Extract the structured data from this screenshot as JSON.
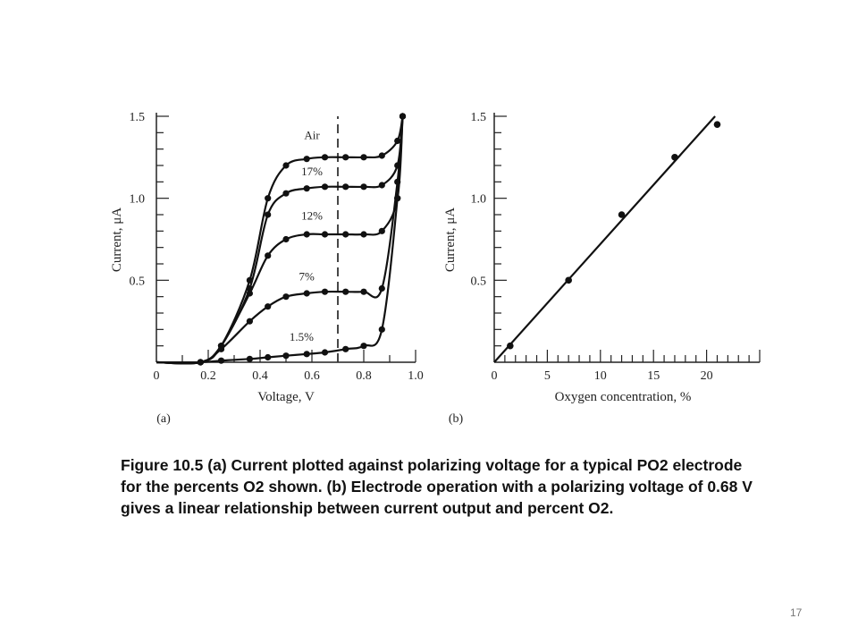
{
  "chart_data": [
    {
      "type": "line",
      "panel_label": "(a)",
      "xlabel": "Voltage, V",
      "ylabel": "Current, μA",
      "xlim": [
        0,
        1.0
      ],
      "ylim": [
        0,
        1.5
      ],
      "x_ticks": [
        "0",
        "0.2",
        "0.4",
        "0.6",
        "0.8",
        "1.0"
      ],
      "y_ticks": [
        "0.5",
        "1.0",
        "1.5"
      ],
      "reference_line_x": 0.7,
      "reference_line_style": "dashed",
      "series": [
        {
          "name": "Air",
          "x": [
            0.0,
            0.17,
            0.25,
            0.36,
            0.43,
            0.5,
            0.58,
            0.65,
            0.73,
            0.8,
            0.87,
            0.93,
            0.95
          ],
          "y": [
            0.0,
            0.0,
            0.1,
            0.5,
            1.0,
            1.2,
            1.24,
            1.25,
            1.25,
            1.25,
            1.26,
            1.35,
            1.5
          ]
        },
        {
          "name": "17%",
          "x": [
            0.0,
            0.17,
            0.25,
            0.36,
            0.43,
            0.5,
            0.58,
            0.65,
            0.73,
            0.8,
            0.87,
            0.93,
            0.95
          ],
          "y": [
            0.0,
            0.0,
            0.1,
            0.45,
            0.9,
            1.03,
            1.06,
            1.07,
            1.07,
            1.07,
            1.08,
            1.2,
            1.5
          ]
        },
        {
          "name": "12%",
          "x": [
            0.0,
            0.17,
            0.25,
            0.36,
            0.43,
            0.5,
            0.58,
            0.65,
            0.73,
            0.8,
            0.87,
            0.93,
            0.95
          ],
          "y": [
            0.0,
            0.0,
            0.1,
            0.42,
            0.65,
            0.75,
            0.78,
            0.78,
            0.78,
            0.78,
            0.8,
            1.0,
            1.5
          ]
        },
        {
          "name": "7%",
          "x": [
            0.0,
            0.17,
            0.25,
            0.36,
            0.43,
            0.5,
            0.58,
            0.65,
            0.73,
            0.8,
            0.87,
            0.93,
            0.95
          ],
          "y": [
            0.0,
            0.0,
            0.08,
            0.25,
            0.34,
            0.4,
            0.42,
            0.43,
            0.43,
            0.43,
            0.45,
            1.1,
            1.5
          ]
        },
        {
          "name": "1.5%",
          "x": [
            0.0,
            0.17,
            0.25,
            0.36,
            0.43,
            0.5,
            0.58,
            0.65,
            0.73,
            0.8,
            0.87,
            0.93,
            0.95
          ],
          "y": [
            0.0,
            0.0,
            0.01,
            0.02,
            0.03,
            0.04,
            0.05,
            0.06,
            0.08,
            0.1,
            0.2,
            1.0,
            1.5
          ]
        }
      ],
      "curve_labels": [
        "Air",
        "17%",
        "12%",
        "7%",
        "1.5%"
      ]
    },
    {
      "type": "scatter",
      "panel_label": "(b)",
      "xlabel": "Oxygen concentration, %",
      "ylabel": "Current, μA",
      "xlim": [
        0,
        25
      ],
      "ylim": [
        0,
        1.5
      ],
      "x_ticks": [
        "0",
        "5",
        "10",
        "15",
        "20"
      ],
      "y_ticks": [
        "0.5",
        "1.0",
        "1.5"
      ],
      "points": {
        "x": [
          1.5,
          7,
          12,
          17,
          21
        ],
        "y": [
          0.1,
          0.5,
          0.9,
          1.25,
          1.45
        ]
      },
      "fit_line": {
        "x": [
          0,
          20.8
        ],
        "y": [
          0,
          1.5
        ]
      }
    }
  ],
  "caption": "Figure 10.5    (a) Current plotted against polarizing voltage for a typical PO2 electrode for the percents O2 shown. (b) Electrode operation with a polarizing voltage of 0.68 V gives a linear relationship between current output and percent O2.",
  "page_number": "17"
}
